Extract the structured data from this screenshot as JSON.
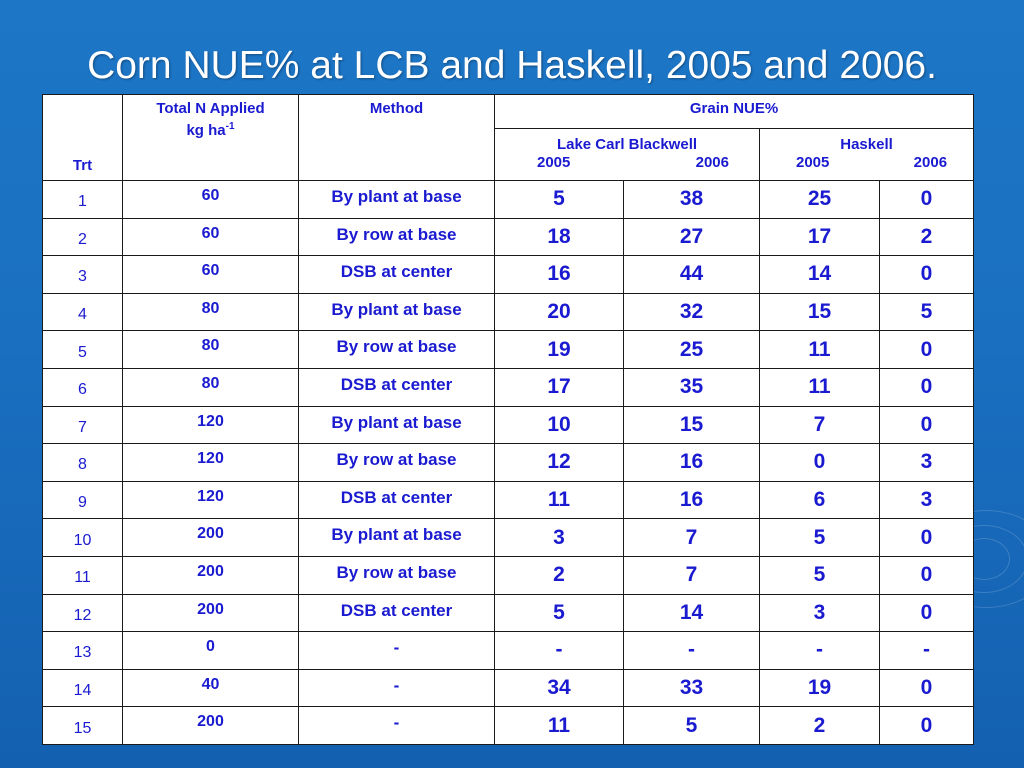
{
  "title": "Corn NUE% at LCB and Haskell, 2005 and 2006.",
  "table": {
    "headers": {
      "trt": "Trt",
      "total_n_line1": "Total N Applied",
      "total_n_line2": "kg ha",
      "total_n_sup": "-1",
      "method": "Method",
      "grain_nue": "Grain NUE%",
      "lcb": "Lake Carl Blackwell",
      "haskell": "Haskell",
      "year1": "2005",
      "year2": "2006"
    },
    "rows": [
      {
        "trt": "1",
        "n": "60",
        "method": "By plant at base",
        "lcb2005": "5",
        "lcb2006": "38",
        "has2005": "25",
        "has2006": "0"
      },
      {
        "trt": "2",
        "n": "60",
        "method": "By row at base",
        "lcb2005": "18",
        "lcb2006": "27",
        "has2005": "17",
        "has2006": "2"
      },
      {
        "trt": "3",
        "n": "60",
        "method": "DSB at center",
        "lcb2005": "16",
        "lcb2006": "44",
        "has2005": "14",
        "has2006": "0"
      },
      {
        "trt": "4",
        "n": "80",
        "method": "By plant at base",
        "lcb2005": "20",
        "lcb2006": "32",
        "has2005": "15",
        "has2006": "5"
      },
      {
        "trt": "5",
        "n": "80",
        "method": "By row at base",
        "lcb2005": "19",
        "lcb2006": "25",
        "has2005": "11",
        "has2006": "0"
      },
      {
        "trt": "6",
        "n": "80",
        "method": "DSB at center",
        "lcb2005": "17",
        "lcb2006": "35",
        "has2005": "11",
        "has2006": "0"
      },
      {
        "trt": "7",
        "n": "120",
        "method": "By plant at base",
        "lcb2005": "10",
        "lcb2006": "15",
        "has2005": "7",
        "has2006": "0"
      },
      {
        "trt": "8",
        "n": "120",
        "method": "By row at base",
        "lcb2005": "12",
        "lcb2006": "16",
        "has2005": "0",
        "has2006": "3"
      },
      {
        "trt": "9",
        "n": "120",
        "method": "DSB at center",
        "lcb2005": "11",
        "lcb2006": "16",
        "has2005": "6",
        "has2006": "3"
      },
      {
        "trt": "10",
        "n": "200",
        "method": "By plant at base",
        "lcb2005": "3",
        "lcb2006": "7",
        "has2005": "5",
        "has2006": "0"
      },
      {
        "trt": "11",
        "n": "200",
        "method": "By row at base",
        "lcb2005": "2",
        "lcb2006": "7",
        "has2005": "5",
        "has2006": "0"
      },
      {
        "trt": "12",
        "n": "200",
        "method": "DSB at center",
        "lcb2005": "5",
        "lcb2006": "14",
        "has2005": "3",
        "has2006": "0"
      },
      {
        "trt": "13",
        "n": "0",
        "method": "-",
        "lcb2005": "-",
        "lcb2006": "-",
        "has2005": "-",
        "has2006": "-"
      },
      {
        "trt": "14",
        "n": "40",
        "method": "-",
        "lcb2005": "34",
        "lcb2006": "33",
        "has2005": "19",
        "has2006": "0"
      },
      {
        "trt": "15",
        "n": "200",
        "method": "-",
        "lcb2005": "11",
        "lcb2006": "5",
        "has2005": "2",
        "has2006": "0"
      }
    ]
  }
}
